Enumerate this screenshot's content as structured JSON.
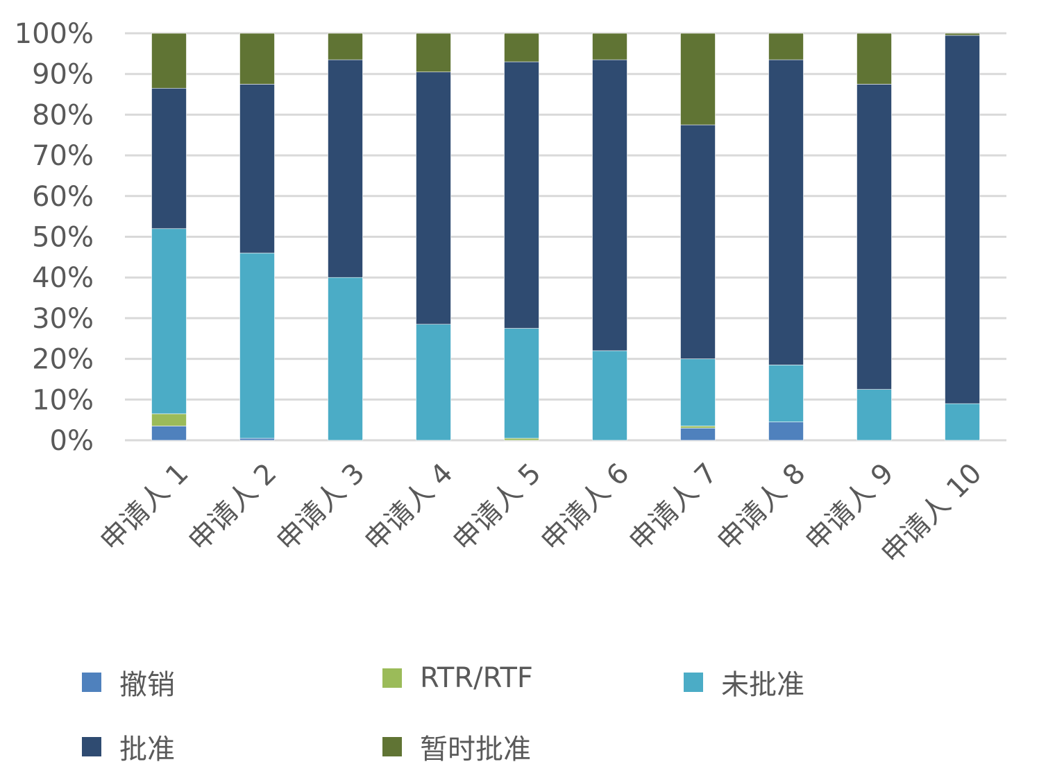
{
  "chart_data": {
    "type": "bar",
    "stacked": true,
    "normalized": true,
    "categories": [
      "申请人 1",
      "申请人 2",
      "申请人 3",
      "申请人 4",
      "申请人 5",
      "申请人 6",
      "申请人 7",
      "申请人 8",
      "申请人 9",
      "申请人 10"
    ],
    "series": [
      {
        "name": "撤销",
        "color": "#4f81bd",
        "values": [
          3.5,
          0.5,
          0,
          0,
          0,
          0,
          3,
          4.5,
          0,
          0
        ]
      },
      {
        "name": "RTR/RTF",
        "color": "#9bbb59",
        "values": [
          3,
          0,
          0,
          0,
          0.5,
          0,
          0.5,
          0,
          0,
          0
        ]
      },
      {
        "name": "未批准",
        "color": "#4bacc6",
        "values": [
          45.5,
          45.5,
          40,
          28.5,
          27,
          22,
          16.5,
          14,
          12.5,
          9
        ]
      },
      {
        "name": "批准",
        "color": "#2f4b71",
        "values": [
          34.5,
          41.5,
          53.5,
          62,
          65.5,
          71.5,
          57.5,
          75,
          75,
          90.5
        ]
      },
      {
        "name": "暂时批准",
        "color": "#607434",
        "values": [
          13.5,
          12.5,
          6.5,
          9.5,
          7,
          6.5,
          22.5,
          6.5,
          12.5,
          0.5
        ]
      }
    ],
    "yticks": [
      "0%",
      "10%",
      "20%",
      "30%",
      "40%",
      "50%",
      "60%",
      "70%",
      "80%",
      "90%",
      "100%"
    ],
    "ylim": [
      0,
      100
    ],
    "grid": true,
    "legend_position": "bottom",
    "title": "",
    "xlabel": "",
    "ylabel": ""
  }
}
